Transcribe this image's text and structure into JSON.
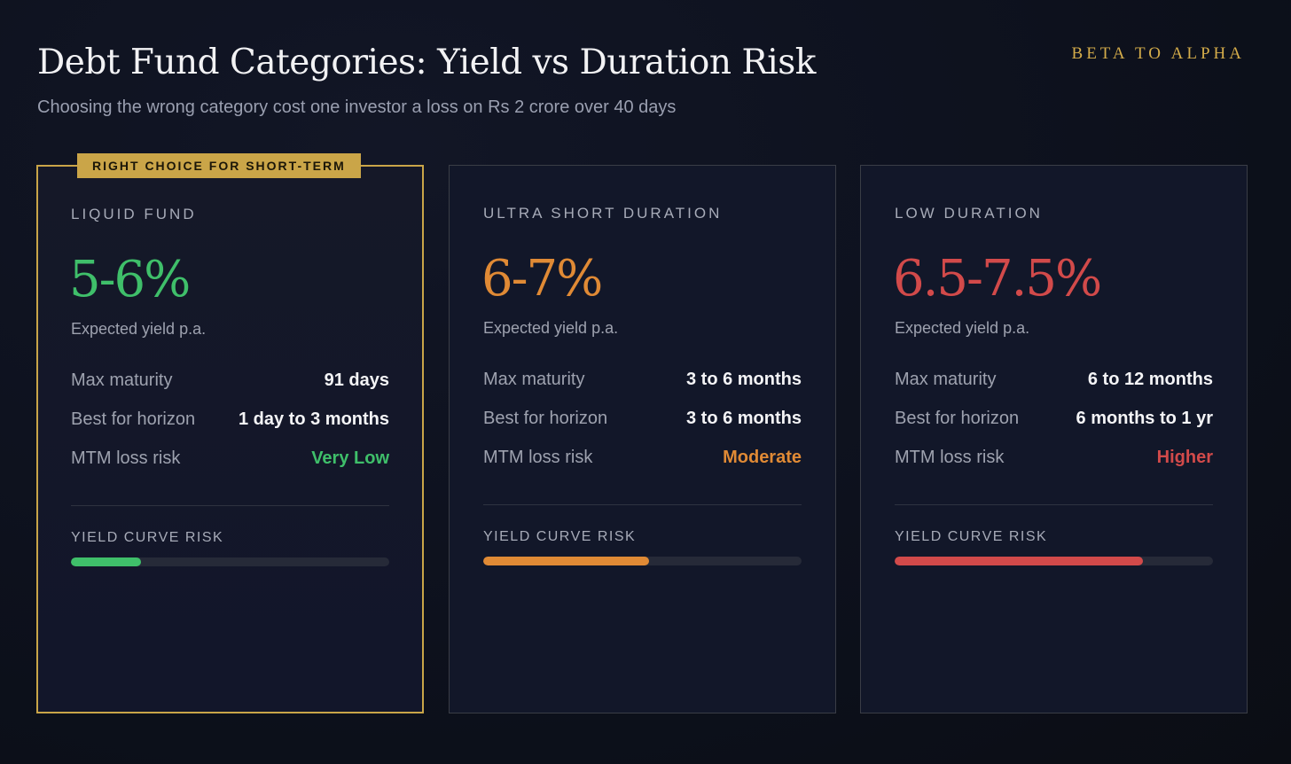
{
  "header": {
    "title": "Debt Fund Categories: Yield vs Duration Risk",
    "subtitle": "Choosing the wrong category cost one investor a loss on Rs 2 crore over 40 days",
    "brand": "BETA TO ALPHA"
  },
  "colors": {
    "gold": "#caa548",
    "green": "#3fbf6a",
    "orange": "#e08a35",
    "red": "#d24a4a"
  },
  "cards": [
    {
      "badge": "RIGHT CHOICE FOR SHORT-TERM",
      "category": "LIQUID FUND",
      "yield": "5-6%",
      "yield_label": "Expected yield p.a.",
      "accent": "#3fbf6a",
      "rows": [
        {
          "label": "Max maturity",
          "value": "91 days"
        },
        {
          "label": "Best for horizon",
          "value": "1 day to 3 months"
        },
        {
          "label": "MTM loss risk",
          "value": "Very Low"
        }
      ],
      "risk_label": "YIELD CURVE RISK",
      "risk_level": 0.22
    },
    {
      "category": "ULTRA SHORT DURATION",
      "yield": "6-7%",
      "yield_label": "Expected yield p.a.",
      "accent": "#e08a35",
      "rows": [
        {
          "label": "Max maturity",
          "value": "3 to 6 months"
        },
        {
          "label": "Best for horizon",
          "value": "3 to 6 months"
        },
        {
          "label": "MTM loss risk",
          "value": "Moderate"
        }
      ],
      "risk_label": "YIELD CURVE RISK",
      "risk_level": 0.52
    },
    {
      "category": "LOW DURATION",
      "yield": "6.5-7.5%",
      "yield_label": "Expected yield p.a.",
      "accent": "#d24a4a",
      "rows": [
        {
          "label": "Max maturity",
          "value": "6 to 12 months"
        },
        {
          "label": "Best for horizon",
          "value": "6 months to 1 yr"
        },
        {
          "label": "MTM loss risk",
          "value": "Higher"
        }
      ],
      "risk_label": "YIELD CURVE RISK",
      "risk_level": 0.78
    }
  ]
}
